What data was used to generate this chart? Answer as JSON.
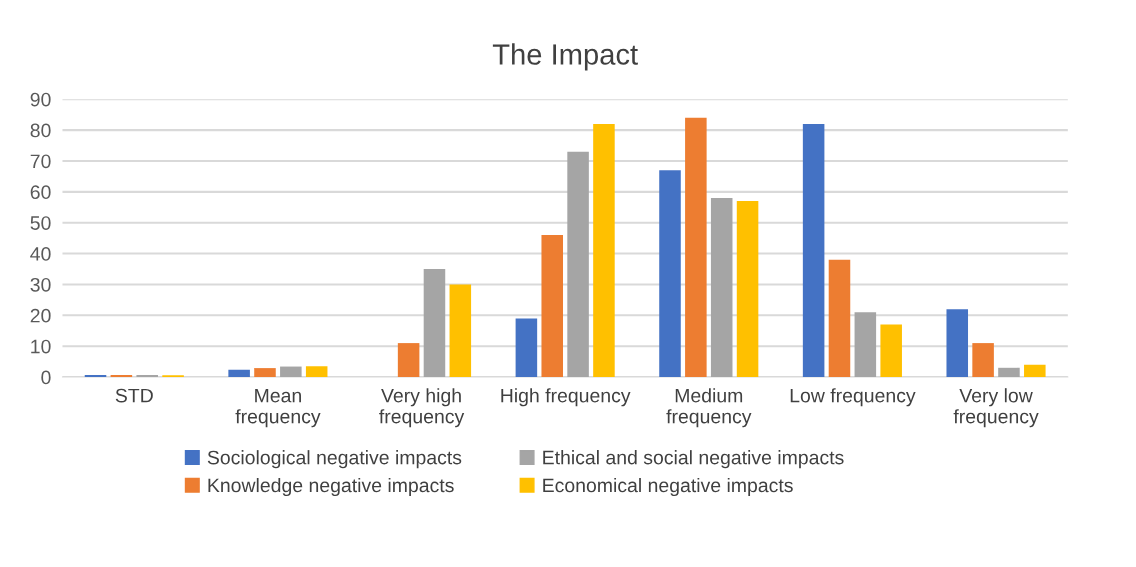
{
  "chart_data": {
    "type": "bar",
    "title": "The Impact",
    "categories": [
      "STD",
      "Mean\nfrequency",
      "Very high\nfrequency",
      "High frequency",
      "Medium\nfrequency",
      "Low frequency",
      "Very low\nfrequency"
    ],
    "series": [
      {
        "name": "Sociological negative impacts",
        "color": "#4472c4",
        "values": [
          0.7,
          2.4,
          0,
          19,
          67,
          82,
          22
        ]
      },
      {
        "name": "Knowledge negative impacts",
        "color": "#ed7d31",
        "values": [
          0.7,
          2.9,
          11,
          46,
          84,
          38,
          11
        ]
      },
      {
        "name": "Ethical and social negative impacts",
        "color": "#a5a5a5",
        "values": [
          0.7,
          3.4,
          35,
          73,
          58,
          21,
          3
        ]
      },
      {
        "name": "Economical negative impacts",
        "color": "#ffc000",
        "values": [
          0.6,
          3.5,
          30,
          82,
          57,
          17,
          4
        ]
      }
    ],
    "ylim": [
      0,
      90
    ],
    "yticks": [
      0,
      10,
      20,
      30,
      40,
      50,
      60,
      70,
      80,
      90
    ],
    "grid": "y",
    "legend": "bottom"
  }
}
